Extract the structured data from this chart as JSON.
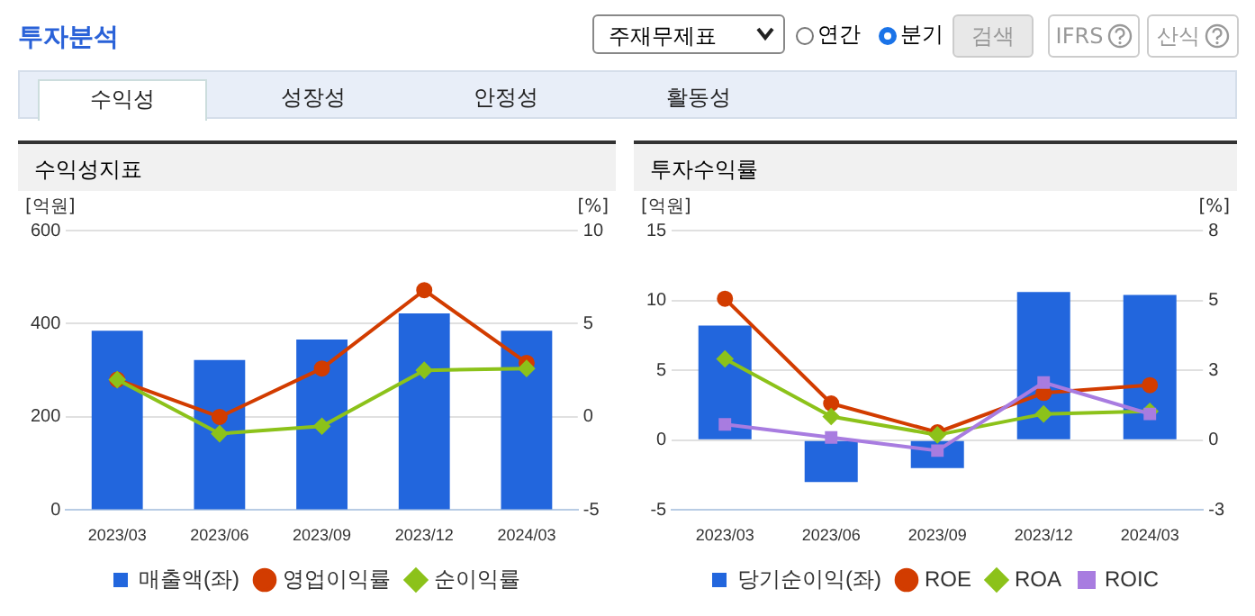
{
  "chart_data": [
    {
      "type": "other",
      "title": "투자분석",
      "annotations": [
        "주재무제표",
        "연간",
        "분기",
        "검색",
        "IFRS",
        "산식",
        "수익성",
        "성장성",
        "안정성",
        "활동성"
      ]
    },
    {
      "type": "bar",
      "title": "수익성지표",
      "ylabel": "[억원]",
      "y2label": "[%]",
      "categories": [
        "2023/03",
        "2023/06",
        "2023/09",
        "2023/12",
        "2024/03"
      ],
      "series": [
        {
          "name": "매출액(좌)",
          "type": "bar",
          "color": "#2266dd",
          "values": [
            385,
            322,
            366,
            422,
            385
          ]
        },
        {
          "name": "영업이익률",
          "type": "line",
          "axis": "y2",
          "marker": "circle",
          "color": "#d23c00",
          "values": [
            2.0,
            0.0,
            2.6,
            6.8,
            2.9
          ]
        },
        {
          "name": "순이익률",
          "type": "line",
          "axis": "y2",
          "marker": "diamond",
          "color": "#8cc21a",
          "values": [
            2.0,
            -0.9,
            -0.5,
            2.5,
            2.6
          ]
        }
      ],
      "ylim": [
        0,
        600
      ],
      "yticks": [
        0,
        200,
        400,
        600
      ],
      "y2lim": [
        -5,
        10
      ],
      "y2ticks": [
        -5,
        0,
        5,
        10
      ],
      "grid": "y",
      "legend": "bottom"
    },
    {
      "type": "bar",
      "title": "투자수익률",
      "ylabel": "[억원]",
      "y2label": "[%]",
      "categories": [
        "2023/03",
        "2023/06",
        "2023/09",
        "2023/12",
        "2024/03"
      ],
      "series": [
        {
          "name": "당기순이익(좌)",
          "type": "bar",
          "color": "#2266dd",
          "values": [
            8.2,
            -3.0,
            -2.0,
            10.6,
            10.4
          ]
        },
        {
          "name": "ROE",
          "type": "line",
          "axis": "y2",
          "marker": "circle",
          "color": "#d23c00",
          "values": [
            5.4,
            1.4,
            0.3,
            1.8,
            2.1
          ]
        },
        {
          "name": "ROA",
          "type": "line",
          "axis": "y2",
          "marker": "diamond",
          "color": "#8cc21a",
          "values": [
            3.1,
            0.9,
            0.2,
            1.0,
            1.1
          ]
        },
        {
          "name": "ROIC",
          "type": "line",
          "axis": "y2",
          "marker": "square",
          "color": "#a87ce0",
          "values": [
            0.6,
            0.1,
            -0.4,
            2.2,
            1.0
          ]
        }
      ],
      "ylim": [
        -5,
        15
      ],
      "yticks": [
        -5,
        0,
        5,
        10,
        15
      ],
      "y2lim": [
        -2.67,
        8
      ],
      "y2ticks": [
        {
          "value": -2.67,
          "label": "-3"
        },
        0,
        {
          "value": 2.67,
          "label": "3"
        },
        {
          "value": 5.33,
          "label": "5"
        },
        8
      ],
      "grid": "y",
      "legend": "bottom"
    }
  ]
}
